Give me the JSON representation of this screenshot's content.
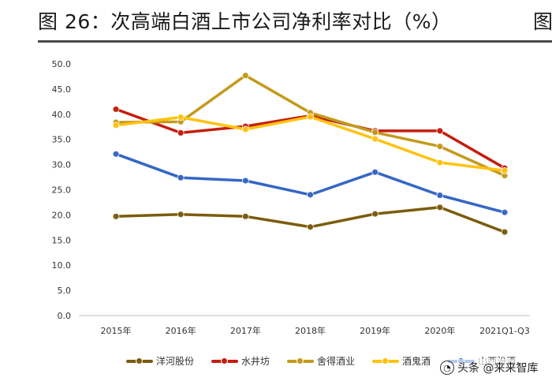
{
  "header": {
    "title": "图 26：次高端白酒上市公司净利率对比（%）",
    "right_fragment": "图"
  },
  "watermark": {
    "text": "头条 @来来智库",
    "icon": "user-circle-icon",
    "icon_glyph": "◔"
  },
  "chart_data": {
    "type": "line",
    "title": "次高端白酒上市公司净利率对比（%）",
    "xlabel": "",
    "ylabel": "",
    "categories": [
      "2015年",
      "2016年",
      "2017年",
      "2018年",
      "2019年",
      "2020年",
      "2021Q1-Q3"
    ],
    "ylim": [
      0,
      50
    ],
    "yticks": [
      "0.0",
      "5.0",
      "10.0",
      "15.0",
      "20.0",
      "25.0",
      "30.0",
      "35.0",
      "40.0",
      "45.0",
      "50.0"
    ],
    "legend_position": "bottom",
    "series": [
      {
        "name": "洋河股份",
        "color": "#7B5C0E",
        "values": [
          19.7,
          20.1,
          19.7,
          17.6,
          20.2,
          21.5,
          16.6
        ]
      },
      {
        "name": "水井坊",
        "color": "#C41E0E",
        "values": [
          41.0,
          36.3,
          37.6,
          39.7,
          36.7,
          36.7,
          29.3
        ]
      },
      {
        "name": "舍得酒业",
        "color": "#C49A1C",
        "values": [
          38.4,
          38.5,
          47.7,
          40.3,
          36.4,
          33.6,
          27.8
        ]
      },
      {
        "name": "酒鬼酒",
        "color": "#FFC20E",
        "values": [
          37.8,
          39.4,
          37.0,
          39.5,
          35.1,
          30.4,
          28.8
        ]
      },
      {
        "name": "山西汾酒",
        "color": "#3567C4",
        "values": [
          32.1,
          27.4,
          26.8,
          24.0,
          28.5,
          23.9,
          20.5
        ]
      }
    ]
  }
}
